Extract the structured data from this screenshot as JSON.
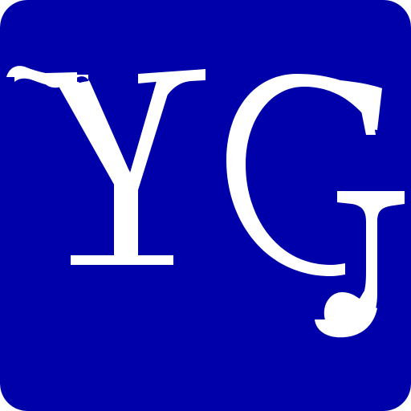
{
  "logo": {
    "text": "YG",
    "background_color": "#0000AA",
    "foreground_color": "#FFFFFF"
  }
}
